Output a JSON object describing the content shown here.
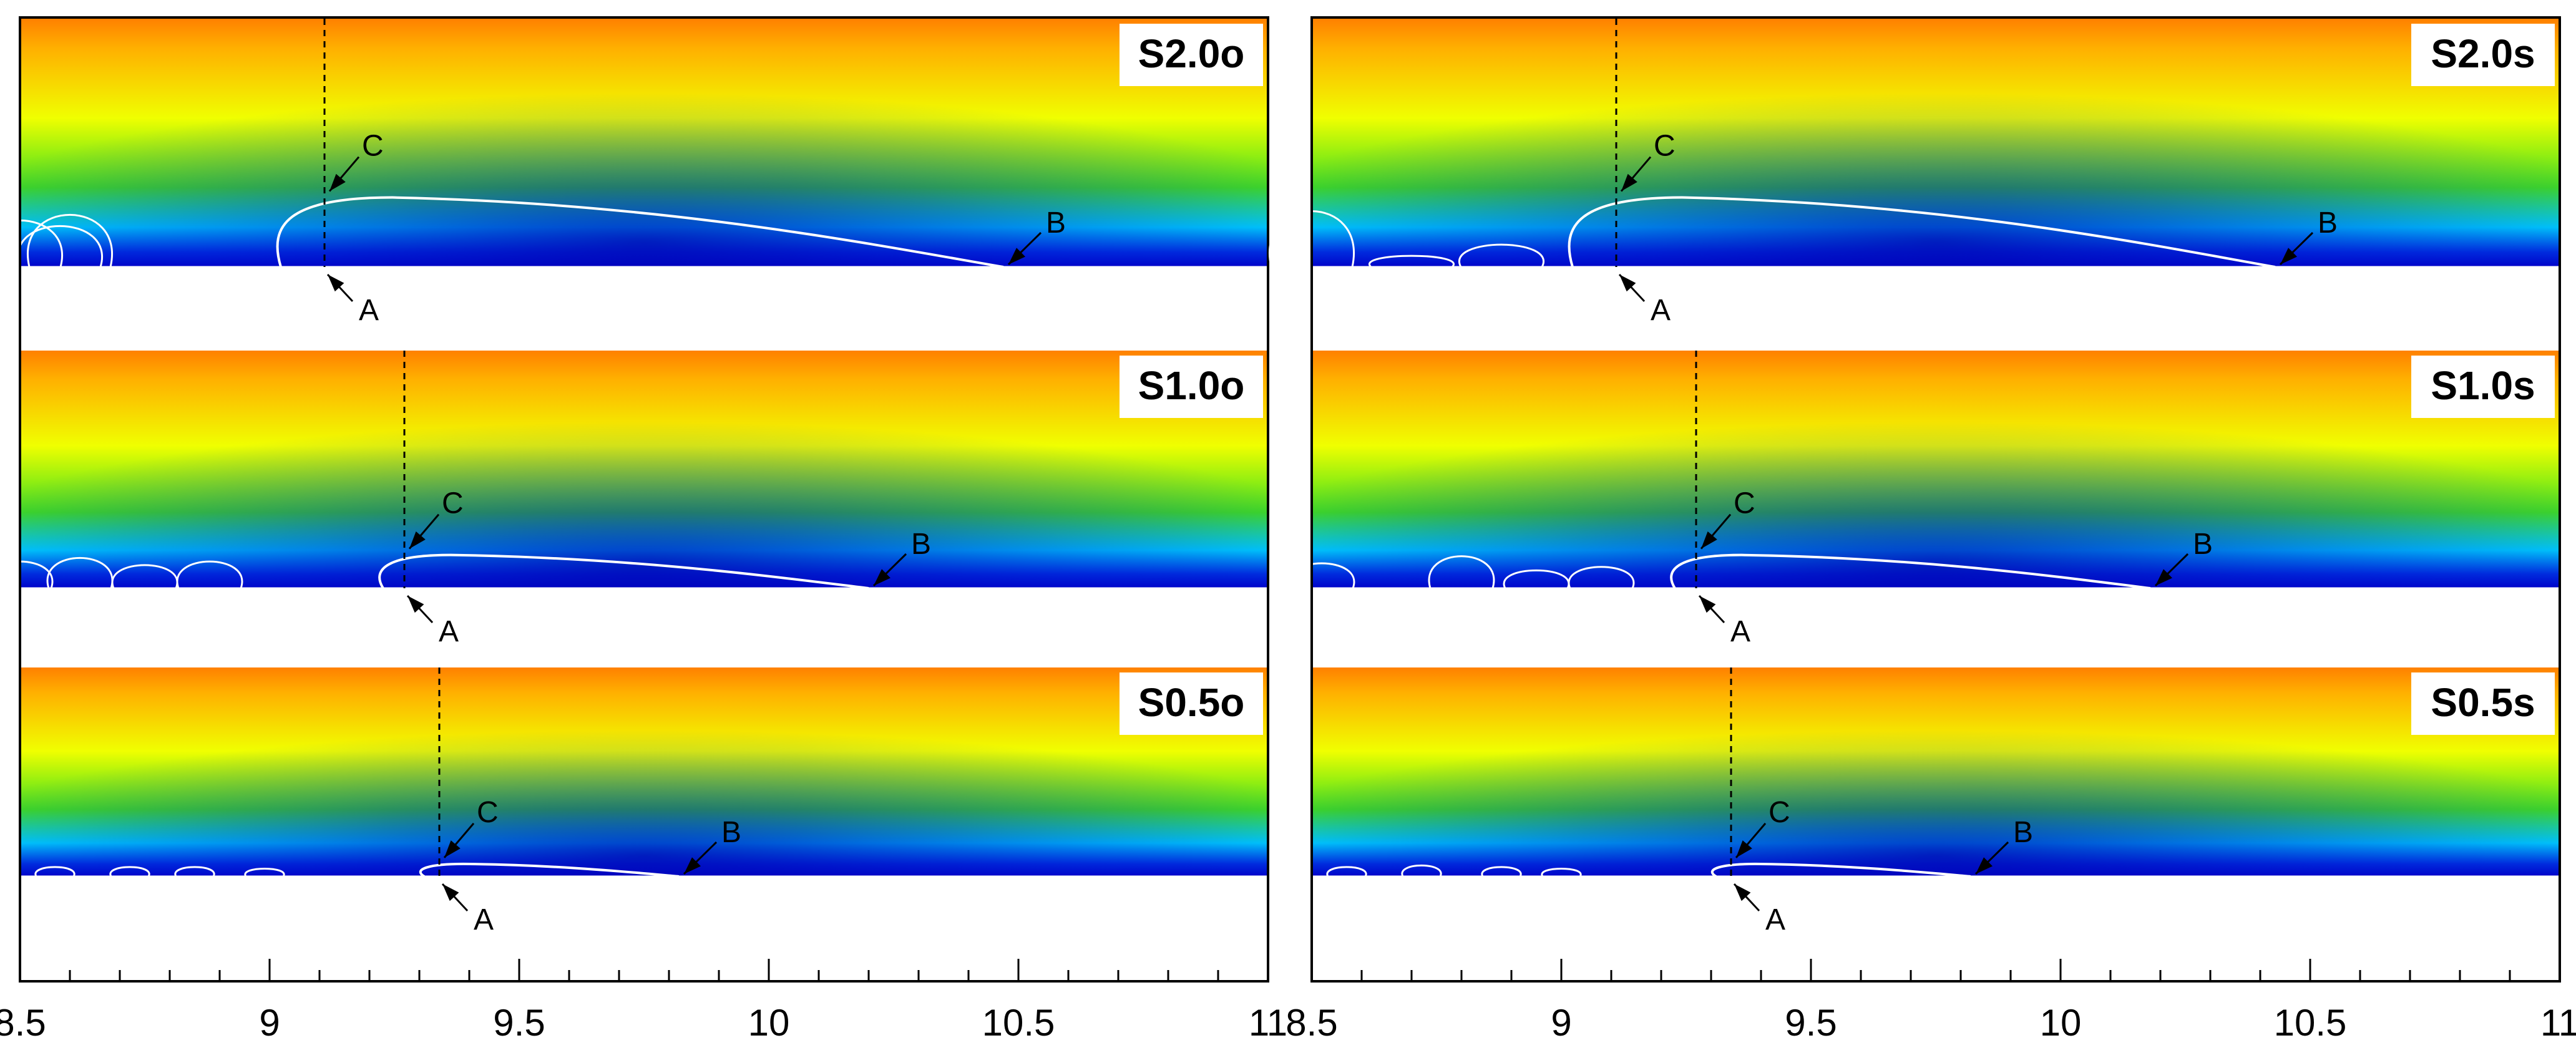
{
  "axis": {
    "xmin": 8.5,
    "xmax": 11,
    "tick_labels": [
      "8.5",
      "9",
      "9.5",
      "10",
      "10.5",
      "11"
    ],
    "tick_values": [
      8.5,
      9,
      9.5,
      10,
      10.5,
      11
    ],
    "minor_step": 0.1
  },
  "colors": {
    "top": "#ff8000",
    "upper": "#ffb000",
    "yellow": "#f0ff00",
    "green": "#40e020",
    "cyan": "#00d8ff",
    "blue": "#0030e0",
    "deep_blue": "#0000c8",
    "contour": "#ffffff",
    "frame": "#000000"
  },
  "panels": [
    {
      "label": "S2.0o",
      "point_labels": {
        "A": "A",
        "B": "B",
        "C": "C"
      },
      "separation_x": 9.11,
      "reattach_x": 10.47
    },
    {
      "label": "S1.0o",
      "point_labels": {
        "A": "A",
        "B": "B",
        "C": "C"
      },
      "separation_x": 9.27,
      "reattach_x": 10.2
    },
    {
      "label": "S0.5o",
      "point_labels": {
        "A": "A",
        "B": "B",
        "C": "C"
      },
      "separation_x": 9.34,
      "reattach_x": 9.82
    },
    {
      "label": "S2.0s",
      "point_labels": {
        "A": "A",
        "B": "B",
        "C": "C"
      },
      "separation_x": 9.11,
      "reattach_x": 10.43
    },
    {
      "label": "S1.0s",
      "point_labels": {
        "A": "A",
        "B": "B",
        "C": "C"
      },
      "separation_x": 9.27,
      "reattach_x": 10.18
    },
    {
      "label": "S0.5s",
      "point_labels": {
        "A": "A",
        "B": "B",
        "C": "C"
      },
      "separation_x": 9.34,
      "reattach_x": 9.82
    }
  ]
}
